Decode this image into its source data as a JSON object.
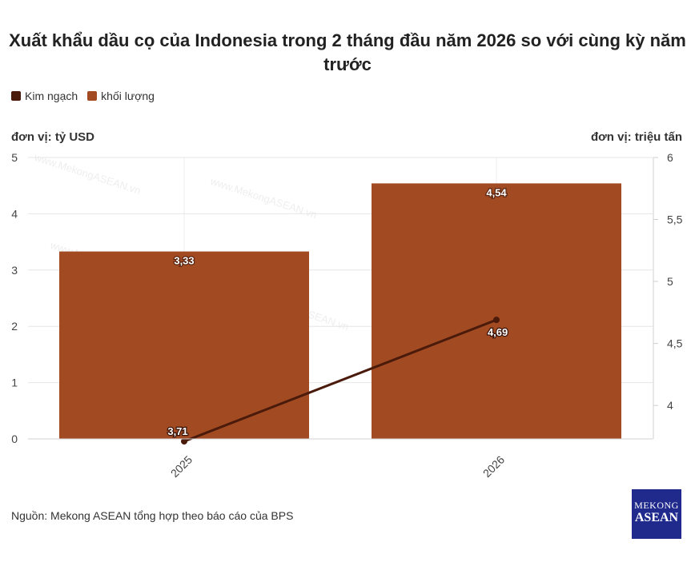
{
  "title": "Xuất khẩu dầu cọ của Indonesia trong 2 tháng đầu năm 2026 so với cùng kỳ năm trước",
  "legend": [
    {
      "name": "Kim ngạch",
      "color": "#4a1a0b"
    },
    {
      "name": "khối lượng",
      "color": "#a24a22"
    }
  ],
  "left_unit": "đơn vị: tỷ USD",
  "right_unit": "đơn vị: triệu tấn",
  "source": "Nguồn: Mekong ASEAN tổng hợp theo báo cáo của BPS",
  "logo": {
    "line1": "MEKONG",
    "line2": "ASEAN"
  },
  "watermark": "www.MekongASEAN.vn",
  "chart_data": {
    "type": "bar",
    "categories": [
      "2025",
      "2026"
    ],
    "series": [
      {
        "name": "khối lượng",
        "type": "bar",
        "axis": "left",
        "values": [
          3.33,
          4.54
        ],
        "labels": [
          "3,33",
          "4,54"
        ],
        "color": "#a24a22"
      },
      {
        "name": "Kim ngạch",
        "type": "line",
        "axis": "right",
        "values": [
          3.71,
          4.69
        ],
        "labels": [
          "3,71",
          "4,69"
        ],
        "color": "#4a1a0b"
      }
    ],
    "left_axis": {
      "min": 0,
      "max": 5,
      "ticks": [
        0,
        1,
        2,
        3,
        4,
        5
      ],
      "tick_labels": [
        "0",
        "1",
        "2",
        "3",
        "4",
        "5"
      ]
    },
    "right_axis": {
      "min": 3.73,
      "max": 6,
      "ticks": [
        4,
        4.5,
        5,
        5.5,
        6
      ],
      "tick_labels": [
        "4",
        "4,5",
        "5",
        "5,5",
        "6"
      ]
    },
    "grid": true
  }
}
